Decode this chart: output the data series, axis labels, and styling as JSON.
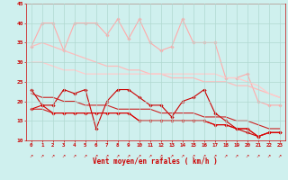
{
  "x": [
    0,
    1,
    2,
    3,
    4,
    5,
    6,
    7,
    8,
    9,
    10,
    11,
    12,
    13,
    14,
    15,
    16,
    17,
    18,
    19,
    20,
    21,
    22,
    23
  ],
  "series": [
    {
      "name": "rafales_max",
      "color": "#ffaaaa",
      "linewidth": 0.8,
      "marker": "D",
      "markersize": 1.8,
      "y": [
        34,
        40,
        40,
        33,
        40,
        40,
        40,
        37,
        41,
        36,
        41,
        35,
        33,
        34,
        41,
        35,
        35,
        35,
        26,
        26,
        27,
        20,
        19,
        19
      ]
    },
    {
      "name": "moy_upper",
      "color": "#ffbbbb",
      "linewidth": 0.9,
      "marker": null,
      "markersize": 0,
      "y": [
        34,
        35,
        34,
        33,
        32,
        31,
        30,
        29,
        29,
        28,
        28,
        27,
        27,
        26,
        26,
        26,
        25,
        25,
        25,
        24,
        24,
        23,
        22,
        21
      ]
    },
    {
      "name": "moy_lower",
      "color": "#ffcccc",
      "linewidth": 0.9,
      "marker": null,
      "markersize": 0,
      "y": [
        30,
        30,
        29,
        28,
        28,
        27,
        27,
        27,
        27,
        27,
        27,
        27,
        27,
        27,
        27,
        27,
        27,
        27,
        26,
        26,
        25,
        24,
        22,
        21
      ]
    },
    {
      "name": "vent_moyen",
      "color": "#cc0000",
      "linewidth": 0.8,
      "marker": "D",
      "markersize": 1.8,
      "y": [
        23,
        19,
        19,
        23,
        22,
        23,
        13,
        20,
        23,
        23,
        21,
        19,
        19,
        16,
        20,
        21,
        23,
        17,
        15,
        13,
        12,
        11,
        12,
        12
      ]
    },
    {
      "name": "trend_upper",
      "color": "#cc2222",
      "linewidth": 0.8,
      "marker": null,
      "markersize": 0,
      "y": [
        22,
        21,
        21,
        20,
        20,
        19,
        19,
        19,
        18,
        18,
        18,
        18,
        17,
        17,
        17,
        17,
        16,
        16,
        16,
        15,
        15,
        14,
        13,
        13
      ]
    },
    {
      "name": "trend_lower",
      "color": "#cc2222",
      "linewidth": 0.8,
      "marker": null,
      "markersize": 0,
      "y": [
        18,
        18,
        17,
        17,
        17,
        17,
        17,
        17,
        17,
        17,
        15,
        15,
        15,
        15,
        15,
        15,
        15,
        14,
        14,
        13,
        13,
        11,
        12,
        12
      ]
    },
    {
      "name": "vent_low_line",
      "color": "#dd0000",
      "linewidth": 0.8,
      "marker": "D",
      "markersize": 1.8,
      "y": [
        18,
        19,
        17,
        17,
        17,
        17,
        17,
        17,
        17,
        17,
        15,
        15,
        15,
        15,
        15,
        15,
        15,
        14,
        14,
        13,
        13,
        11,
        12,
        12
      ]
    }
  ],
  "xlabel": "Vent moyen/en rafales ( km/h )",
  "ylim": [
    10,
    45
  ],
  "xlim_min": -0.5,
  "xlim_max": 23.5,
  "yticks": [
    10,
    15,
    20,
    25,
    30,
    35,
    40,
    45
  ],
  "xticks": [
    0,
    1,
    2,
    3,
    4,
    5,
    6,
    7,
    8,
    9,
    10,
    11,
    12,
    13,
    14,
    15,
    16,
    17,
    18,
    19,
    20,
    21,
    22,
    23
  ],
  "bg_color": "#cff0ee",
  "grid_color": "#b0d8d0",
  "text_color": "#cc0000",
  "figsize": [
    3.2,
    2.0
  ],
  "dpi": 100
}
